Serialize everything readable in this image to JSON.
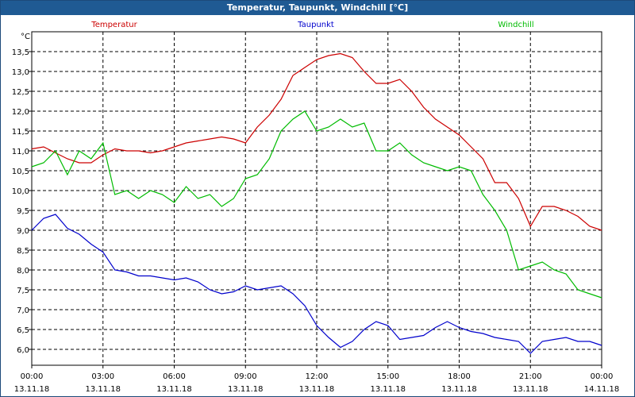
{
  "window": {
    "title": "Temperatur, Taupunkt, Windchill [°C]"
  },
  "chart_data": {
    "type": "line",
    "title": "Temperatur, Taupunkt, Windchill [°C]",
    "ylabel": "°C",
    "xlabel": "",
    "ylim": [
      5.6,
      14.0
    ],
    "y_ticks": [
      "6,0",
      "6,5",
      "7,0",
      "7,5",
      "8,0",
      "8,5",
      "9,0",
      "9,5",
      "10,0",
      "10,5",
      "11,0",
      "11,5",
      "12,0",
      "12,5",
      "13,0",
      "13,5"
    ],
    "y_tick_values": [
      6.0,
      6.5,
      7.0,
      7.5,
      8.0,
      8.5,
      9.0,
      9.5,
      10.0,
      10.5,
      11.0,
      11.5,
      12.0,
      12.5,
      13.0,
      13.5
    ],
    "x_ticks": [
      {
        "time": "00:00",
        "date": "13.11.18"
      },
      {
        "time": "03:00",
        "date": "13.11.18"
      },
      {
        "time": "06:00",
        "date": "13.11.18"
      },
      {
        "time": "09:00",
        "date": "13.11.18"
      },
      {
        "time": "12:00",
        "date": "13.11.18"
      },
      {
        "time": "15:00",
        "date": "13.11.18"
      },
      {
        "time": "18:00",
        "date": "13.11.18"
      },
      {
        "time": "21:00",
        "date": "13.11.18"
      },
      {
        "time": "00:00",
        "date": "14.11.18"
      }
    ],
    "x_range_hours": [
      0,
      24
    ],
    "grid": true,
    "legend_placement": "top",
    "series": [
      {
        "name": "Temperatur",
        "color": "#cc0000",
        "x": [
          0,
          0.5,
          1,
          1.5,
          2,
          2.5,
          3,
          3.5,
          4,
          4.5,
          5,
          5.5,
          6,
          6.5,
          7,
          7.5,
          8,
          8.5,
          9,
          9.5,
          10,
          10.5,
          11,
          11.5,
          12,
          12.5,
          13,
          13.5,
          14,
          14.5,
          15,
          15.5,
          16,
          16.5,
          17,
          17.5,
          18,
          18.5,
          19,
          19.5,
          20,
          20.5,
          21,
          21.5,
          22,
          22.5,
          23,
          23.5,
          24
        ],
        "values": [
          11.05,
          11.1,
          10.95,
          10.8,
          10.7,
          10.7,
          10.9,
          11.05,
          11.0,
          11.0,
          10.95,
          11.0,
          11.1,
          11.2,
          11.25,
          11.3,
          11.35,
          11.3,
          11.2,
          11.6,
          11.9,
          12.3,
          12.9,
          13.1,
          13.3,
          13.4,
          13.45,
          13.35,
          13.0,
          12.7,
          12.7,
          12.8,
          12.5,
          12.1,
          11.8,
          11.6,
          11.4,
          11.1,
          10.8,
          10.2,
          10.2,
          9.8,
          9.1,
          9.6,
          9.6,
          9.5,
          9.35,
          9.1,
          9.0
        ]
      },
      {
        "name": "Taupunkt",
        "color": "#0000cc",
        "x": [
          0,
          0.5,
          1,
          1.5,
          2,
          2.5,
          3,
          3.5,
          4,
          4.5,
          5,
          5.5,
          6,
          6.5,
          7,
          7.5,
          8,
          8.5,
          9,
          9.5,
          10,
          10.5,
          11,
          11.5,
          12,
          12.5,
          13,
          13.5,
          14,
          14.5,
          15,
          15.5,
          16,
          16.5,
          17,
          17.5,
          18,
          18.5,
          19,
          19.5,
          20,
          20.5,
          21,
          21.5,
          22,
          22.5,
          23,
          23.5,
          24
        ],
        "values": [
          9.0,
          9.3,
          9.4,
          9.05,
          8.9,
          8.65,
          8.45,
          8.0,
          7.95,
          7.85,
          7.85,
          7.8,
          7.75,
          7.8,
          7.7,
          7.5,
          7.4,
          7.45,
          7.6,
          7.5,
          7.55,
          7.6,
          7.4,
          7.1,
          6.6,
          6.3,
          6.05,
          6.2,
          6.5,
          6.7,
          6.6,
          6.25,
          6.3,
          6.35,
          6.55,
          6.7,
          6.55,
          6.45,
          6.4,
          6.3,
          6.25,
          6.2,
          5.9,
          6.2,
          6.25,
          6.3,
          6.2,
          6.2,
          6.1
        ]
      },
      {
        "name": "Windchill",
        "color": "#00bb00",
        "x": [
          0,
          0.5,
          1,
          1.5,
          2,
          2.5,
          3,
          3.5,
          4,
          4.5,
          5,
          5.5,
          6,
          6.5,
          7,
          7.5,
          8,
          8.5,
          9,
          9.5,
          10,
          10.5,
          11,
          11.5,
          12,
          12.5,
          13,
          13.5,
          14,
          14.5,
          15,
          15.5,
          16,
          16.5,
          17,
          17.5,
          18,
          18.5,
          19,
          19.5,
          20,
          20.5,
          21,
          21.5,
          22,
          22.5,
          23,
          23.5,
          24
        ],
        "values": [
          10.6,
          10.7,
          11.0,
          10.4,
          11.0,
          10.8,
          11.2,
          9.9,
          10.0,
          9.8,
          10.0,
          9.9,
          9.7,
          10.1,
          9.8,
          9.9,
          9.6,
          9.8,
          10.3,
          10.4,
          10.8,
          11.5,
          11.8,
          12.0,
          11.5,
          11.6,
          11.8,
          11.6,
          11.7,
          11.0,
          11.0,
          11.2,
          10.9,
          10.7,
          10.6,
          10.5,
          10.6,
          10.5,
          9.9,
          9.5,
          9.0,
          8.0,
          8.1,
          8.2,
          8.0,
          7.9,
          7.5,
          7.4,
          7.3
        ]
      }
    ]
  }
}
